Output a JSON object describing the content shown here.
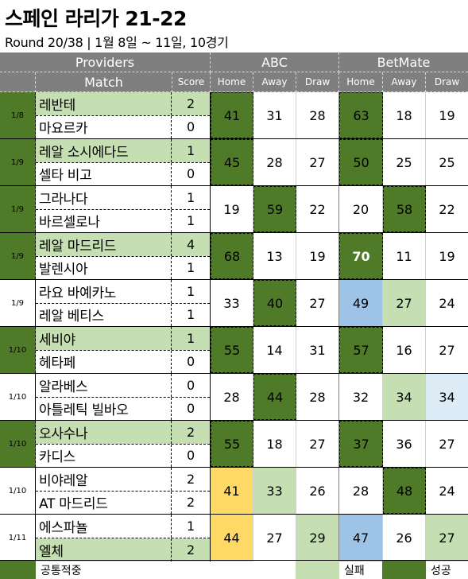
{
  "title": "스페인 라리가 21-22",
  "subtitle": "Round 20/38 | 1월 8일 ~ 11일, 10경기",
  "header": {
    "providers": "Providers",
    "abc": "ABC",
    "betmate": "BetMate",
    "match": "Match",
    "score": "Score",
    "home": "Home",
    "away": "Away",
    "draw": "Draw"
  },
  "matches": [
    {
      "date": "1/8",
      "home": "레반테",
      "home_score": "2",
      "away": "마요르카",
      "away_score": "0",
      "abc": [
        "41",
        "31",
        "28"
      ],
      "betmate": [
        "63",
        "18",
        "19"
      ]
    },
    {
      "date": "1/9",
      "home": "레알 소시에다드",
      "home_score": "1",
      "away": "셀타 비고",
      "away_score": "0",
      "abc": [
        "45",
        "28",
        "27"
      ],
      "betmate": [
        "50",
        "25",
        "25"
      ]
    },
    {
      "date": "1/9",
      "home": "그라나다",
      "home_score": "1",
      "away": "바르셀로나",
      "away_score": "1",
      "abc": [
        "19",
        "59",
        "22"
      ],
      "betmate": [
        "20",
        "58",
        "22"
      ]
    },
    {
      "date": "1/9",
      "home": "레알 마드리드",
      "home_score": "4",
      "away": "발렌시아",
      "away_score": "1",
      "abc": [
        "68",
        "13",
        "19"
      ],
      "betmate": [
        "70",
        "11",
        "19"
      ]
    },
    {
      "date": "1/9",
      "home": "라요 바예카노",
      "home_score": "1",
      "away": "레알 베티스",
      "away_score": "1",
      "abc": [
        "33",
        "40",
        "27"
      ],
      "betmate": [
        "49",
        "27",
        "24"
      ]
    },
    {
      "date": "1/10",
      "home": "세비야",
      "home_score": "1",
      "away": "헤타페",
      "away_score": "0",
      "abc": [
        "55",
        "14",
        "31"
      ],
      "betmate": [
        "57",
        "16",
        "27"
      ]
    },
    {
      "date": "1/10",
      "home": "알라베스",
      "home_score": "0",
      "away": "아틀레틱 빌바오",
      "away_score": "0",
      "abc": [
        "28",
        "44",
        "28"
      ],
      "betmate": [
        "32",
        "34",
        "34"
      ]
    },
    {
      "date": "1/10",
      "home": "오사수나",
      "home_score": "2",
      "away": "카디스",
      "away_score": "0",
      "abc": [
        "55",
        "18",
        "27"
      ],
      "betmate": [
        "37",
        "36",
        "27"
      ]
    },
    {
      "date": "1/10",
      "home": "비야레알",
      "home_score": "2",
      "away": "AT 마드리드",
      "away_score": "2",
      "abc": [
        "41",
        "33",
        "26"
      ],
      "betmate": [
        "28",
        "48",
        "24"
      ]
    },
    {
      "date": "1/11",
      "home": "에스파뇰",
      "home_score": "1",
      "away": "엘체",
      "away_score": "2",
      "abc": [
        "44",
        "27",
        "29"
      ],
      "betmate": [
        "47",
        "26",
        "27"
      ]
    }
  ],
  "legend": {
    "together": "공통적중",
    "fail": "실패",
    "success": "성공"
  },
  "colors": {
    "header_gray": "#7f7f7f",
    "success_dark_green": "#4f7a28",
    "fail_light_green": "#c5dfb3",
    "winner_highlight": "#c5dfb3",
    "yellow": "#ffd966",
    "blue": "#9dc3e6",
    "pale_blue": "#ddebf7"
  }
}
